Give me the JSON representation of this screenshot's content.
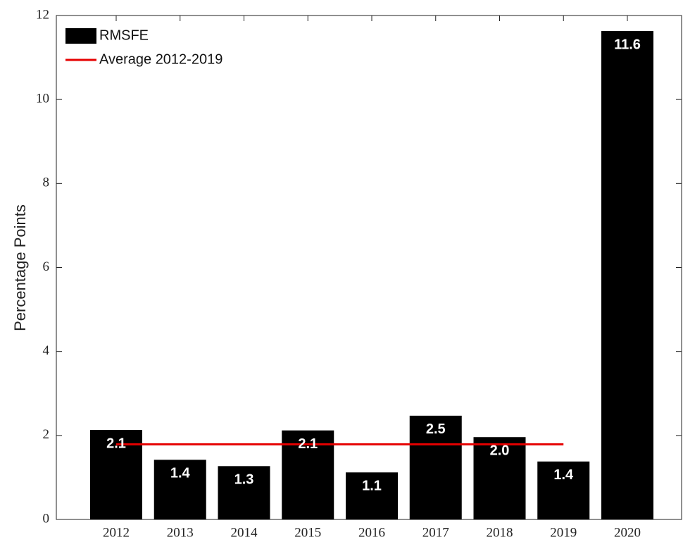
{
  "chart_data": {
    "type": "bar",
    "y_label": "Percentage Points",
    "categories": [
      "2012",
      "2013",
      "2014",
      "2015",
      "2016",
      "2017",
      "2018",
      "2019",
      "2020"
    ],
    "series": [
      {
        "name": "RMSFE",
        "type": "bar",
        "color": "#000000",
        "values": [
          2.13,
          1.42,
          1.27,
          2.12,
          1.12,
          2.47,
          1.96,
          1.38,
          11.63
        ],
        "value_labels": [
          "2.1",
          "1.4",
          "1.3",
          "2.1",
          "1.1",
          "2.5",
          "2.0",
          "1.4",
          "11.6"
        ]
      },
      {
        "name": "Average 2012-2019",
        "type": "line",
        "color": "#e60000",
        "values": [
          1.79,
          1.79,
          1.79,
          1.79,
          1.79,
          1.79,
          1.79,
          1.79,
          null
        ]
      }
    ],
    "ylim": [
      0,
      12
    ],
    "yticks": [
      0,
      2,
      4,
      6,
      8,
      10,
      12
    ],
    "legend": "upper-left"
  }
}
